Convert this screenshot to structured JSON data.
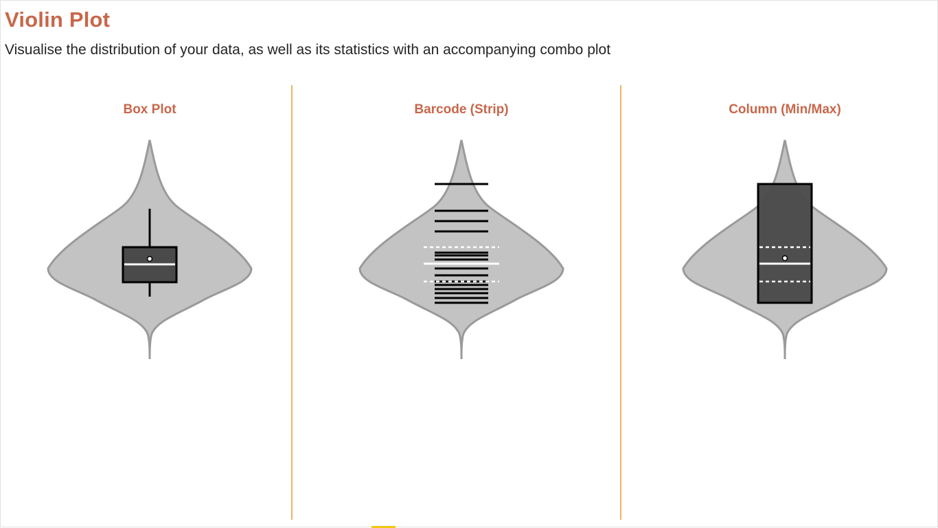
{
  "header": {
    "title": "Violin Plot",
    "subtitle": "Visualise the distribution of your data, as well as its statistics with an accompanying combo plot"
  },
  "colors": {
    "title": "#c8674a",
    "divider": "#f2b266",
    "violin_fill": "#c3c3c3",
    "violin_stroke": "#9a9a9a",
    "combo_fill": "#4a4a4a"
  },
  "panels": [
    {
      "title": "Box Plot",
      "combo_type": "box"
    },
    {
      "title": "Barcode (Strip)",
      "combo_type": "barcode"
    },
    {
      "title": "Column (Min/Max)",
      "combo_type": "column"
    }
  ]
}
